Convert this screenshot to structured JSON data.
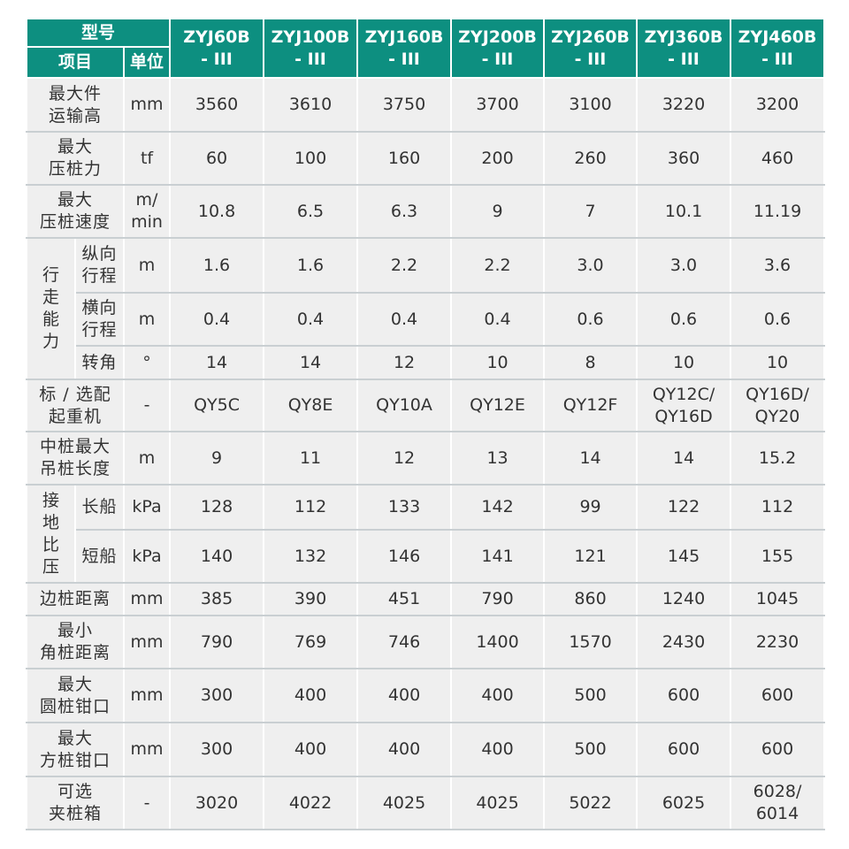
{
  "header": {
    "model_label": "型号",
    "item_label": "项目",
    "unit_label": "单位",
    "models": [
      "ZYJ60B\n- III",
      "ZYJ100B\n- III",
      "ZYJ160B\n- III",
      "ZYJ200B\n- III",
      "ZYJ260B\n- III",
      "ZYJ360B\n- III",
      "ZYJ460B\n- III"
    ]
  },
  "colors": {
    "header_bg": "#0d8f80",
    "cell_bg": "#efefef"
  },
  "rows": [
    {
      "label": "最大件\n运输高",
      "unit": "mm",
      "values": [
        "3560",
        "3610",
        "3750",
        "3700",
        "3100",
        "3220",
        "3200"
      ]
    },
    {
      "label": "最大\n压桩力",
      "unit": "tf",
      "values": [
        "60",
        "100",
        "160",
        "200",
        "260",
        "360",
        "460"
      ]
    },
    {
      "label": "最大\n压桩速度",
      "unit": "m/\nmin",
      "values": [
        "10.8",
        "6.5",
        "6.3",
        "9",
        "7",
        "10.1",
        "11.19"
      ]
    },
    {
      "group": "行\n走\n能\n力",
      "span": 3,
      "label": "纵向\n行程",
      "unit": "m",
      "values": [
        "1.6",
        "1.6",
        "2.2",
        "2.2",
        "3.0",
        "3.0",
        "3.6"
      ]
    },
    {
      "label": "横向\n行程",
      "unit": "m",
      "values": [
        "0.4",
        "0.4",
        "0.4",
        "0.4",
        "0.6",
        "0.6",
        "0.6"
      ],
      "sub": true
    },
    {
      "label": "转角",
      "unit": "°",
      "values": [
        "14",
        "14",
        "12",
        "10",
        "8",
        "10",
        "10"
      ],
      "sub": true
    },
    {
      "label": "标 / 选配\n起重机",
      "unit": "-",
      "values": [
        "QY5C",
        "QY8E",
        "QY10A",
        "QY12E",
        "QY12F",
        "QY12C/\nQY16D",
        "QY16D/\nQY20"
      ]
    },
    {
      "label": "中桩最大\n吊桩长度",
      "unit": "m",
      "values": [
        "9",
        "11",
        "12",
        "13",
        "14",
        "14",
        "15.2"
      ]
    },
    {
      "group": "接\n地\n比\n压",
      "span": 2,
      "label": "长船",
      "unit": "kPa",
      "values": [
        "128",
        "112",
        "133",
        "142",
        "99",
        "122",
        "112"
      ]
    },
    {
      "label": "短船",
      "unit": "kPa",
      "values": [
        "140",
        "132",
        "146",
        "141",
        "121",
        "145",
        "155"
      ],
      "sub": true
    },
    {
      "label": "边桩距离",
      "unit": "mm",
      "values": [
        "385",
        "390",
        "451",
        "790",
        "860",
        "1240",
        "1045"
      ]
    },
    {
      "label": "最小\n角桩距离",
      "unit": "mm",
      "values": [
        "790",
        "769",
        "746",
        "1400",
        "1570",
        "2430",
        "2230"
      ]
    },
    {
      "label": "最大\n圆桩钳口",
      "unit": "mm",
      "values": [
        "300",
        "400",
        "400",
        "400",
        "500",
        "600",
        "600"
      ]
    },
    {
      "label": "最大\n方桩钳口",
      "unit": "mm",
      "values": [
        "300",
        "400",
        "400",
        "400",
        "500",
        "600",
        "600"
      ]
    },
    {
      "label": "可选\n夹桩箱",
      "unit": "-",
      "values": [
        "3020",
        "4022",
        "4025",
        "4025",
        "5022",
        "6025",
        "6028/\n6014"
      ]
    }
  ]
}
